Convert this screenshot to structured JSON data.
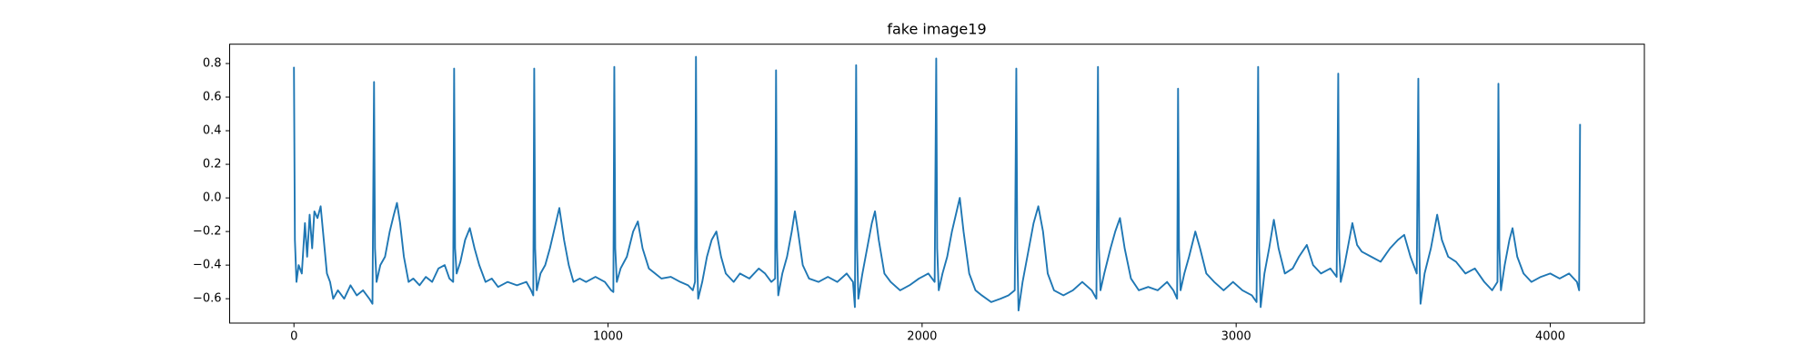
{
  "chart_data": {
    "type": "line",
    "title": "fake image19",
    "x": [
      0,
      3,
      8,
      15,
      25,
      35,
      42,
      50,
      58,
      65,
      75,
      85,
      95,
      105,
      115,
      125,
      140,
      160,
      180,
      200,
      220,
      240,
      250,
      255,
      258,
      263,
      275,
      290,
      305,
      318,
      328,
      338,
      350,
      365,
      380,
      400,
      420,
      440,
      460,
      480,
      495,
      507,
      510,
      513,
      518,
      530,
      545,
      560,
      575,
      590,
      610,
      630,
      650,
      680,
      710,
      740,
      755,
      762,
      765,
      768,
      773,
      785,
      800,
      815,
      830,
      845,
      860,
      875,
      890,
      910,
      930,
      960,
      990,
      1010,
      1017,
      1020,
      1023,
      1028,
      1040,
      1060,
      1080,
      1095,
      1110,
      1130,
      1150,
      1170,
      1200,
      1230,
      1255,
      1270,
      1277,
      1280,
      1283,
      1287,
      1300,
      1315,
      1330,
      1345,
      1360,
      1375,
      1400,
      1420,
      1450,
      1480,
      1500,
      1520,
      1532,
      1535,
      1538,
      1542,
      1555,
      1570,
      1585,
      1595,
      1605,
      1620,
      1640,
      1670,
      1700,
      1730,
      1760,
      1780,
      1786,
      1790,
      1793,
      1797,
      1810,
      1825,
      1840,
      1850,
      1862,
      1880,
      1900,
      1930,
      1960,
      1990,
      2020,
      2040,
      2045,
      2048,
      2053,
      2065,
      2080,
      2095,
      2110,
      2120,
      2132,
      2150,
      2170,
      2190,
      2220,
      2250,
      2275,
      2295,
      2300,
      2303,
      2307,
      2320,
      2340,
      2355,
      2370,
      2385,
      2400,
      2420,
      2450,
      2480,
      2510,
      2540,
      2555,
      2560,
      2563,
      2568,
      2580,
      2600,
      2615,
      2630,
      2645,
      2665,
      2690,
      2720,
      2750,
      2780,
      2800,
      2812,
      2815,
      2818,
      2823,
      2835,
      2850,
      2870,
      2885,
      2905,
      2930,
      2960,
      2990,
      3020,
      3050,
      3065,
      3070,
      3073,
      3078,
      3090,
      3105,
      3120,
      3135,
      3155,
      3180,
      3200,
      3225,
      3245,
      3270,
      3300,
      3320,
      3325,
      3328,
      3333,
      3345,
      3360,
      3370,
      3385,
      3400,
      3430,
      3460,
      3490,
      3515,
      3535,
      3555,
      3575,
      3580,
      3583,
      3587,
      3600,
      3620,
      3640,
      3655,
      3675,
      3700,
      3730,
      3760,
      3790,
      3815,
      3832,
      3835,
      3838,
      3843,
      3855,
      3870,
      3880,
      3895,
      3915,
      3940,
      3970,
      4000,
      4030,
      4060,
      4085,
      4092,
      4095
    ],
    "series": [
      {
        "color": "#1f77b4",
        "values": [
          0.78,
          -0.25,
          -0.5,
          -0.4,
          -0.45,
          -0.15,
          -0.35,
          -0.1,
          -0.3,
          -0.08,
          -0.12,
          -0.05,
          -0.25,
          -0.45,
          -0.5,
          -0.6,
          -0.55,
          -0.6,
          -0.52,
          -0.58,
          -0.55,
          -0.6,
          -0.63,
          0.69,
          -0.3,
          -0.5,
          -0.4,
          -0.35,
          -0.2,
          -0.1,
          -0.03,
          -0.15,
          -0.35,
          -0.5,
          -0.48,
          -0.52,
          -0.47,
          -0.5,
          -0.42,
          -0.4,
          -0.48,
          -0.5,
          0.77,
          -0.3,
          -0.45,
          -0.38,
          -0.25,
          -0.18,
          -0.3,
          -0.4,
          -0.5,
          -0.48,
          -0.53,
          -0.5,
          -0.52,
          -0.5,
          -0.55,
          -0.58,
          0.77,
          -0.3,
          -0.55,
          -0.45,
          -0.4,
          -0.3,
          -0.18,
          -0.06,
          -0.25,
          -0.4,
          -0.5,
          -0.48,
          -0.5,
          -0.47,
          -0.5,
          -0.55,
          -0.56,
          0.78,
          -0.3,
          -0.5,
          -0.42,
          -0.35,
          -0.2,
          -0.14,
          -0.3,
          -0.42,
          -0.45,
          -0.48,
          -0.47,
          -0.5,
          -0.52,
          -0.55,
          -0.5,
          0.84,
          -0.3,
          -0.6,
          -0.5,
          -0.35,
          -0.25,
          -0.2,
          -0.35,
          -0.45,
          -0.5,
          -0.45,
          -0.48,
          -0.42,
          -0.45,
          -0.5,
          -0.48,
          0.76,
          -0.3,
          -0.58,
          -0.45,
          -0.35,
          -0.2,
          -0.08,
          -0.2,
          -0.4,
          -0.48,
          -0.5,
          -0.47,
          -0.5,
          -0.45,
          -0.5,
          -0.65,
          0.79,
          -0.3,
          -0.6,
          -0.45,
          -0.3,
          -0.15,
          -0.08,
          -0.25,
          -0.45,
          -0.5,
          -0.55,
          -0.52,
          -0.48,
          -0.45,
          -0.5,
          0.83,
          -0.3,
          -0.55,
          -0.45,
          -0.35,
          -0.2,
          -0.08,
          0.0,
          -0.2,
          -0.45,
          -0.55,
          -0.58,
          -0.62,
          -0.6,
          -0.58,
          -0.55,
          0.77,
          -0.3,
          -0.67,
          -0.5,
          -0.3,
          -0.15,
          -0.05,
          -0.2,
          -0.45,
          -0.55,
          -0.58,
          -0.55,
          -0.5,
          -0.55,
          -0.6,
          0.78,
          -0.3,
          -0.55,
          -0.45,
          -0.3,
          -0.2,
          -0.12,
          -0.3,
          -0.48,
          -0.55,
          -0.53,
          -0.55,
          -0.5,
          -0.55,
          -0.6,
          0.65,
          -0.3,
          -0.55,
          -0.45,
          -0.35,
          -0.2,
          -0.3,
          -0.45,
          -0.5,
          -0.55,
          -0.5,
          -0.55,
          -0.58,
          -0.62,
          0.78,
          -0.3,
          -0.65,
          -0.45,
          -0.3,
          -0.13,
          -0.3,
          -0.45,
          -0.42,
          -0.35,
          -0.28,
          -0.4,
          -0.45,
          -0.42,
          -0.47,
          0.74,
          -0.3,
          -0.5,
          -0.4,
          -0.25,
          -0.15,
          -0.28,
          -0.32,
          -0.35,
          -0.38,
          -0.3,
          -0.25,
          -0.22,
          -0.35,
          -0.45,
          0.71,
          -0.3,
          -0.63,
          -0.45,
          -0.3,
          -0.1,
          -0.25,
          -0.35,
          -0.38,
          -0.45,
          -0.42,
          -0.5,
          -0.55,
          -0.5,
          0.68,
          -0.3,
          -0.55,
          -0.4,
          -0.25,
          -0.18,
          -0.35,
          -0.45,
          -0.5,
          -0.47,
          -0.45,
          -0.48,
          -0.45,
          -0.5,
          -0.55,
          0.44
        ]
      }
    ],
    "xlim": [
      -204.75,
      4299.75
    ],
    "ylim": [
      -0.745,
      0.915
    ],
    "xticks": [
      0,
      1000,
      2000,
      3000,
      4000
    ],
    "yticks": [
      {
        "value": -0.6,
        "label": "−0.6"
      },
      {
        "value": -0.4,
        "label": "−0.4"
      },
      {
        "value": -0.2,
        "label": "−0.2"
      },
      {
        "value": 0,
        "label": "0.0"
      },
      0.2,
      0.4,
      0.6,
      0.8
    ],
    "grid": false
  }
}
